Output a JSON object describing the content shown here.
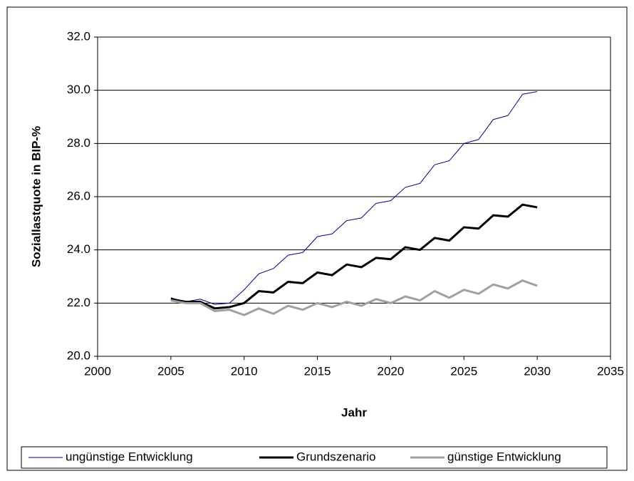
{
  "chart_data": {
    "type": "line",
    "ylabel": "Soziallastquote in BIP-%",
    "xlabel": "Jahr",
    "x": [
      2005,
      2006,
      2007,
      2008,
      2009,
      2010,
      2011,
      2012,
      2013,
      2014,
      2015,
      2016,
      2017,
      2018,
      2019,
      2020,
      2021,
      2022,
      2023,
      2024,
      2025,
      2026,
      2027,
      2028,
      2029,
      2030
    ],
    "series": [
      {
        "name": "ungünstige Entwicklung",
        "color": "#000080",
        "width": 1,
        "values": [
          22.2,
          22.05,
          22.15,
          21.95,
          22.0,
          22.5,
          23.1,
          23.3,
          23.8,
          23.9,
          24.5,
          24.6,
          25.1,
          25.2,
          25.75,
          25.85,
          26.35,
          26.5,
          27.2,
          27.35,
          28.0,
          28.15,
          28.9,
          29.05,
          29.85,
          29.95
        ]
      },
      {
        "name": "Grundszenario",
        "color": "#000000",
        "width": 3,
        "values": [
          22.15,
          22.05,
          22.05,
          21.8,
          21.85,
          22.0,
          22.45,
          22.4,
          22.8,
          22.75,
          23.15,
          23.05,
          23.45,
          23.35,
          23.7,
          23.65,
          24.1,
          24.0,
          24.45,
          24.35,
          24.85,
          24.8,
          25.3,
          25.25,
          25.7,
          25.6
        ]
      },
      {
        "name": "günstige Entwicklung",
        "color": "#a0a0a0",
        "width": 3,
        "values": [
          22.1,
          22.0,
          22.0,
          21.7,
          21.75,
          21.55,
          21.8,
          21.6,
          21.9,
          21.75,
          22.0,
          21.85,
          22.05,
          21.9,
          22.15,
          22.0,
          22.25,
          22.1,
          22.45,
          22.2,
          22.5,
          22.35,
          22.7,
          22.55,
          22.85,
          22.65
        ]
      }
    ],
    "xlim": [
      2000,
      2035
    ],
    "xticks": [
      2000,
      2005,
      2010,
      2015,
      2020,
      2025,
      2030,
      2035
    ],
    "ylim": [
      20,
      32
    ],
    "yticks": [
      {
        "value": 20,
        "label": "20.0"
      },
      {
        "value": 22,
        "label": "22.0"
      },
      {
        "value": 24,
        "label": "24.0"
      },
      {
        "value": 26,
        "label": "26.0"
      },
      {
        "value": 28,
        "label": "28.0"
      },
      {
        "value": 30,
        "label": "30.0"
      },
      {
        "value": 32,
        "label": "32.0"
      }
    ],
    "grid": true,
    "legend": "bottom"
  }
}
